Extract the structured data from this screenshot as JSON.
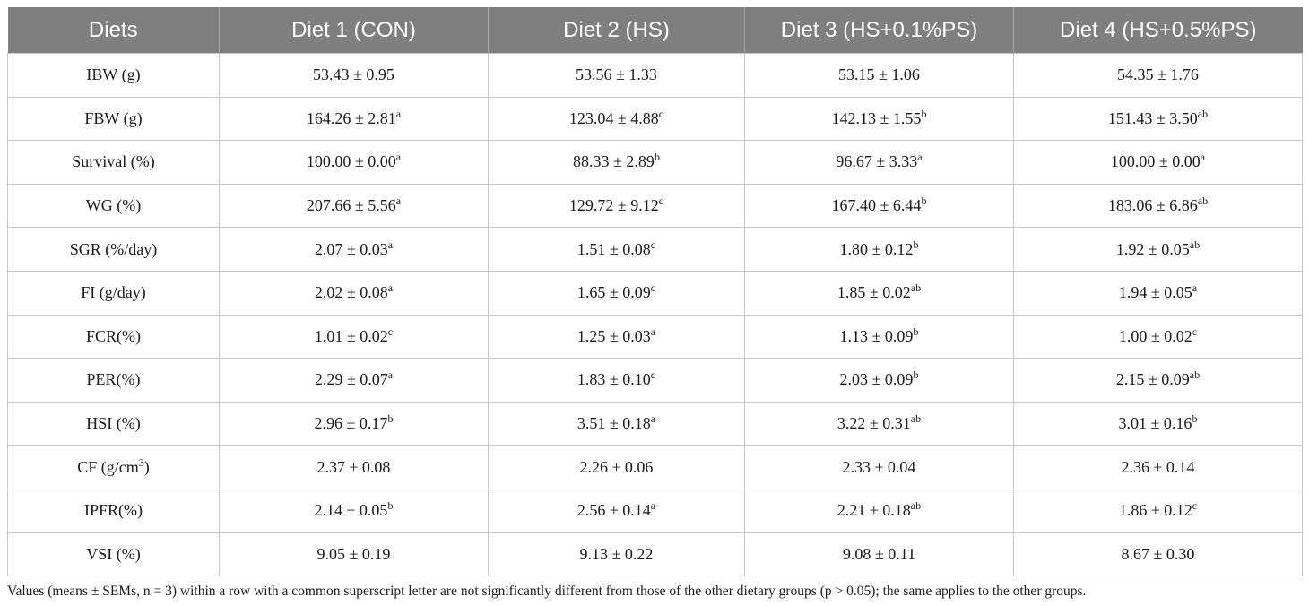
{
  "table": {
    "headers": [
      "Diets",
      "Diet 1 (CON)",
      "Diet 2 (HS)",
      "Diet 3 (HS+0.1%PS)",
      "Diet 4 (HS+0.5%PS)"
    ],
    "rows": [
      {
        "label": "IBW (g)",
        "cells": [
          {
            "v": "53.43 ± 0.95",
            "s": ""
          },
          {
            "v": "53.56 ± 1.33",
            "s": ""
          },
          {
            "v": "53.15 ± 1.06",
            "s": ""
          },
          {
            "v": "54.35 ± 1.76",
            "s": ""
          }
        ]
      },
      {
        "label": "FBW (g)",
        "cells": [
          {
            "v": "164.26 ± 2.81",
            "s": "a"
          },
          {
            "v": "123.04 ± 4.88",
            "s": "c"
          },
          {
            "v": "142.13 ± 1.55",
            "s": "b"
          },
          {
            "v": "151.43 ± 3.50",
            "s": "ab"
          }
        ]
      },
      {
        "label": "Survival (%)",
        "cells": [
          {
            "v": "100.00 ± 0.00",
            "s": "a"
          },
          {
            "v": "88.33 ± 2.89",
            "s": "b"
          },
          {
            "v": "96.67 ± 3.33",
            "s": "a"
          },
          {
            "v": "100.00 ± 0.00",
            "s": "a"
          }
        ]
      },
      {
        "label": "WG (%)",
        "cells": [
          {
            "v": "207.66 ± 5.56",
            "s": "a"
          },
          {
            "v": "129.72 ± 9.12",
            "s": "c"
          },
          {
            "v": "167.40 ± 6.44",
            "s": "b"
          },
          {
            "v": "183.06 ± 6.86",
            "s": "ab"
          }
        ]
      },
      {
        "label": "SGR (%/day)",
        "cells": [
          {
            "v": "2.07 ± 0.03",
            "s": "a"
          },
          {
            "v": "1.51 ± 0.08",
            "s": "c"
          },
          {
            "v": "1.80 ± 0.12",
            "s": "b"
          },
          {
            "v": "1.92 ± 0.05",
            "s": "ab"
          }
        ]
      },
      {
        "label": "FI (g/day)",
        "cells": [
          {
            "v": "2.02 ± 0.08",
            "s": "a"
          },
          {
            "v": "1.65 ± 0.09",
            "s": "c"
          },
          {
            "v": "1.85 ± 0.02",
            "s": "ab"
          },
          {
            "v": "1.94 ± 0.05",
            "s": "a"
          }
        ]
      },
      {
        "label": "FCR(%)",
        "cells": [
          {
            "v": "1.01 ± 0.02",
            "s": "c"
          },
          {
            "v": "1.25 ± 0.03",
            "s": "a"
          },
          {
            "v": "1.13 ± 0.09",
            "s": "b"
          },
          {
            "v": "1.00 ± 0.02",
            "s": "c"
          }
        ]
      },
      {
        "label": "PER(%)",
        "cells": [
          {
            "v": "2.29 ± 0.07",
            "s": "a"
          },
          {
            "v": "1.83 ± 0.10",
            "s": "c"
          },
          {
            "v": "2.03 ± 0.09",
            "s": "b"
          },
          {
            "v": "2.15 ± 0.09",
            "s": "ab"
          }
        ]
      },
      {
        "label": "HSI (%)",
        "cells": [
          {
            "v": "2.96 ± 0.17",
            "s": "b"
          },
          {
            "v": "3.51 ± 0.18",
            "s": "a"
          },
          {
            "v": "3.22 ± 0.31",
            "s": "ab"
          },
          {
            "v": "3.01 ± 0.16",
            "s": "b"
          }
        ]
      },
      {
        "label": "CF (g/cm",
        "label_sup": "3",
        "label_after": ")",
        "cells": [
          {
            "v": "2.37 ± 0.08",
            "s": ""
          },
          {
            "v": "2.26 ± 0.06",
            "s": ""
          },
          {
            "v": "2.33 ± 0.04",
            "s": ""
          },
          {
            "v": "2.36 ± 0.14",
            "s": ""
          }
        ]
      },
      {
        "label": "IPFR(%)",
        "cells": [
          {
            "v": "2.14 ± 0.05",
            "s": "b"
          },
          {
            "v": "2.56 ± 0.14",
            "s": "a"
          },
          {
            "v": "2.21 ± 0.18",
            "s": "ab"
          },
          {
            "v": "1.86 ± 0.12",
            "s": "c"
          }
        ]
      },
      {
        "label": "VSI (%)",
        "cells": [
          {
            "v": "9.05 ± 0.19",
            "s": ""
          },
          {
            "v": "9.13 ± 0.22",
            "s": ""
          },
          {
            "v": "9.08 ± 0.11",
            "s": ""
          },
          {
            "v": "8.67 ± 0.30",
            "s": ""
          }
        ]
      }
    ]
  },
  "footnote": "Values (means ± SEMs, n = 3) within a row with a common superscript letter are not significantly different from those of the other dietary groups (p > 0.05); the same applies to the other groups.",
  "colors": {
    "header_bg": "#7f7f7f",
    "header_text": "#ffffff",
    "grid": "#c8c8c8"
  }
}
